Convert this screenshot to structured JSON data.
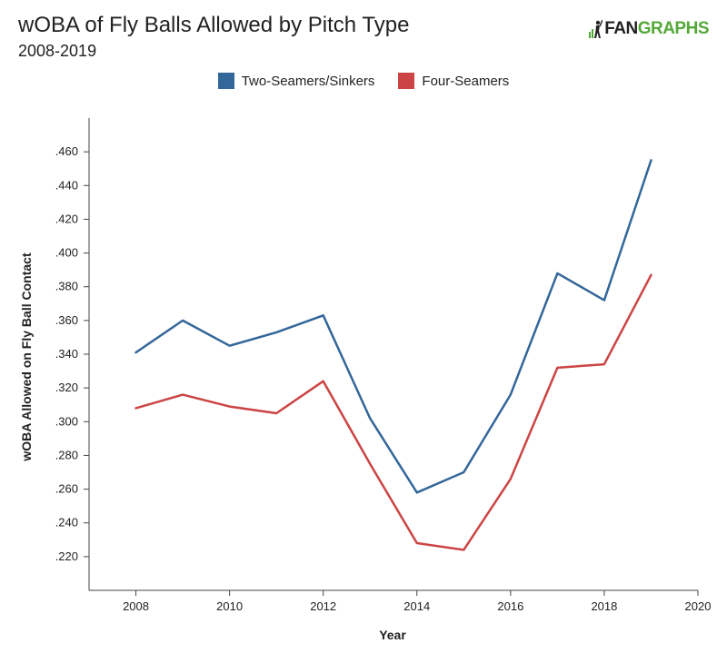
{
  "header": {
    "title": "wOBA of Fly Balls Allowed by Pitch Type",
    "subtitle": "2008-2019",
    "logo_fan": "FAN",
    "logo_graphs": "GRAPHS"
  },
  "colors": {
    "two_seam": "#336699",
    "four_seam": "#cc4444",
    "logo_green": "#54a838",
    "axis": "#444444"
  },
  "chart_data": {
    "type": "line",
    "title": "wOBA of Fly Balls Allowed by Pitch Type",
    "subtitle": "2008-2019",
    "xlabel": "Year",
    "ylabel": "wOBA Allowed on Fly Ball Contact",
    "xlim": [
      2007,
      2020
    ],
    "ylim": [
      0.2,
      0.48
    ],
    "x_ticks": [
      2008,
      2010,
      2012,
      2014,
      2016,
      2018,
      2020
    ],
    "y_ticks": [
      0.22,
      0.24,
      0.26,
      0.28,
      0.3,
      0.32,
      0.34,
      0.36,
      0.38,
      0.4,
      0.42,
      0.44,
      0.46
    ],
    "y_tick_labels": [
      ".220",
      ".240",
      ".260",
      ".280",
      ".300",
      ".320",
      ".340",
      ".360",
      ".380",
      ".400",
      ".420",
      ".440",
      ".460"
    ],
    "x": [
      2008,
      2009,
      2010,
      2011,
      2012,
      2013,
      2014,
      2015,
      2016,
      2017,
      2018,
      2019
    ],
    "series": [
      {
        "name": "Two-Seamers/Sinkers",
        "color": "#336699",
        "values": [
          0.341,
          0.36,
          0.345,
          0.353,
          0.363,
          0.302,
          0.258,
          0.27,
          0.316,
          0.388,
          0.372,
          0.455
        ]
      },
      {
        "name": "Four-Seamers",
        "color": "#cc4444",
        "values": [
          0.308,
          0.316,
          0.309,
          0.305,
          0.324,
          0.275,
          0.228,
          0.224,
          0.266,
          0.332,
          0.334,
          0.387
        ]
      }
    ],
    "legend_position": "top-center",
    "grid": false
  }
}
